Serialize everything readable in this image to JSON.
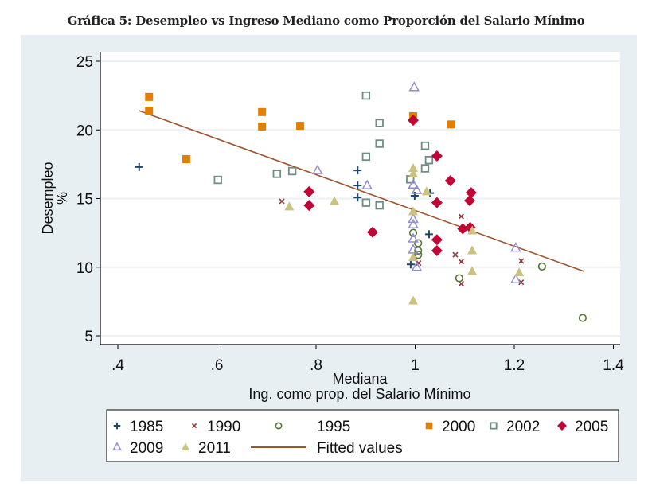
{
  "title": "Gráfica 5: Desempleo vs Ingreso Mediano como Proporción del Salario Mínimo",
  "chart_data": {
    "type": "scatter",
    "title": "Gráfica 5: Desempleo vs Ingreso Mediano como Proporción del Salario Mínimo",
    "xlabel": [
      "Mediana",
      "Ing. como prop. del Salario Mínimo"
    ],
    "ylabel": [
      "Desempleo",
      "%"
    ],
    "xlim": [
      0.38,
      1.42
    ],
    "ylim": [
      4.4,
      25.7
    ],
    "xticks": [
      0.4,
      0.6,
      0.8,
      1.0,
      1.2,
      1.4
    ],
    "xtick_labels": [
      ".4",
      ".6",
      ".8",
      "1",
      "1.2",
      "1.4"
    ],
    "yticks": [
      5,
      10,
      15,
      20,
      25
    ],
    "ytick_labels": [
      "5",
      "10",
      "15",
      "20",
      "25"
    ],
    "grid": "horizontal",
    "legend_position": "bottom",
    "series": [
      {
        "name": "1985",
        "marker": "plus",
        "color": "#1a476f",
        "points": [
          [
            0.443,
            17.3
          ],
          [
            0.884,
            17.05
          ],
          [
            0.884,
            15.95
          ],
          [
            0.884,
            15.07
          ],
          [
            0.999,
            15.2
          ],
          [
            1.03,
            15.4
          ],
          [
            1.028,
            12.4
          ],
          [
            0.991,
            10.2
          ]
        ]
      },
      {
        "name": "1990",
        "marker": "x",
        "color": "#90353b",
        "points": [
          [
            0.731,
            14.8
          ],
          [
            1.093,
            13.7
          ],
          [
            1.081,
            10.9
          ],
          [
            1.093,
            10.4
          ],
          [
            1.093,
            8.8
          ],
          [
            1.007,
            10.3
          ],
          [
            1.214,
            10.45
          ],
          [
            1.214,
            8.9
          ]
        ]
      },
      {
        "name": "1995",
        "marker": "circle-open",
        "color": "#55752f",
        "points": [
          [
            0.996,
            12.5
          ],
          [
            1.006,
            11.75
          ],
          [
            1.006,
            11.2
          ],
          [
            1.006,
            10.9
          ],
          [
            1.089,
            9.2
          ],
          [
            1.256,
            10.05
          ],
          [
            1.338,
            6.3
          ]
        ]
      },
      {
        "name": "2000",
        "marker": "square",
        "color": "#e37e00",
        "points": [
          [
            0.463,
            22.4
          ],
          [
            0.463,
            21.4
          ],
          [
            0.538,
            17.87
          ],
          [
            0.691,
            21.3
          ],
          [
            0.691,
            20.25
          ],
          [
            0.768,
            20.3
          ],
          [
            0.996,
            21.0
          ],
          [
            1.073,
            20.4
          ]
        ]
      },
      {
        "name": "2002",
        "marker": "square-open",
        "color": "#6e8e84",
        "points": [
          [
            0.602,
            16.36
          ],
          [
            0.721,
            16.8
          ],
          [
            0.752,
            17.0
          ],
          [
            0.901,
            22.5
          ],
          [
            0.928,
            20.5
          ],
          [
            0.928,
            19.0
          ],
          [
            0.901,
            18.05
          ],
          [
            1.02,
            18.85
          ],
          [
            1.028,
            17.8
          ],
          [
            1.02,
            17.2
          ],
          [
            0.99,
            16.4
          ],
          [
            0.901,
            14.7
          ],
          [
            0.928,
            14.5
          ]
        ]
      },
      {
        "name": "2005",
        "marker": "diamond",
        "color": "#c10534",
        "points": [
          [
            0.786,
            15.5
          ],
          [
            0.786,
            14.5
          ],
          [
            0.996,
            20.7
          ],
          [
            1.044,
            18.1
          ],
          [
            1.071,
            16.3
          ],
          [
            1.113,
            15.43
          ],
          [
            1.11,
            14.85
          ],
          [
            1.044,
            14.7
          ],
          [
            0.914,
            12.55
          ],
          [
            1.044,
            12.0
          ],
          [
            1.044,
            11.2
          ],
          [
            1.096,
            12.8
          ],
          [
            1.111,
            12.9
          ]
        ]
      },
      {
        "name": "2009",
        "marker": "triangle-open",
        "color": "#938dd2",
        "points": [
          [
            0.803,
            17.05
          ],
          [
            0.998,
            23.1
          ],
          [
            0.903,
            15.95
          ],
          [
            0.996,
            16.0
          ],
          [
            1.003,
            15.6
          ],
          [
            0.996,
            13.5
          ],
          [
            0.996,
            13.1
          ],
          [
            0.996,
            12.07
          ],
          [
            0.996,
            11.27
          ],
          [
            1.003,
            10.0
          ],
          [
            1.203,
            11.4
          ],
          [
            1.203,
            9.1
          ]
        ]
      },
      {
        "name": "2011",
        "marker": "triangle",
        "color": "#cac27e",
        "points": [
          [
            0.746,
            14.4
          ],
          [
            0.837,
            14.8
          ],
          [
            0.996,
            17.2
          ],
          [
            0.996,
            16.8
          ],
          [
            1.023,
            15.5
          ],
          [
            0.996,
            14.05
          ],
          [
            0.996,
            10.7
          ],
          [
            0.996,
            7.55
          ],
          [
            1.115,
            12.65
          ],
          [
            1.115,
            11.2
          ],
          [
            1.115,
            9.7
          ],
          [
            1.21,
            9.6
          ]
        ]
      }
    ],
    "fitted": {
      "name": "Fitted values",
      "color": "#a0522d",
      "x": [
        0.443,
        1.34
      ],
      "y": [
        21.4,
        9.7
      ]
    }
  },
  "legend": {
    "items": [
      {
        "label": "1985",
        "marker": "plus",
        "color": "#1a476f"
      },
      {
        "label": "1990",
        "marker": "x",
        "color": "#90353b"
      },
      {
        "label": "1995",
        "marker": "circle-open",
        "color": "#55752f"
      },
      {
        "label": "2000",
        "marker": "square",
        "color": "#e37e00"
      },
      {
        "label": "2002",
        "marker": "square-open",
        "color": "#6e8e84"
      },
      {
        "label": "2005",
        "marker": "diamond",
        "color": "#c10534"
      },
      {
        "label": "2009",
        "marker": "triangle-open",
        "color": "#938dd2"
      },
      {
        "label": "2011",
        "marker": "triangle",
        "color": "#cac27e"
      },
      {
        "label": "Fitted values",
        "marker": "line",
        "color": "#a0522d"
      }
    ]
  }
}
